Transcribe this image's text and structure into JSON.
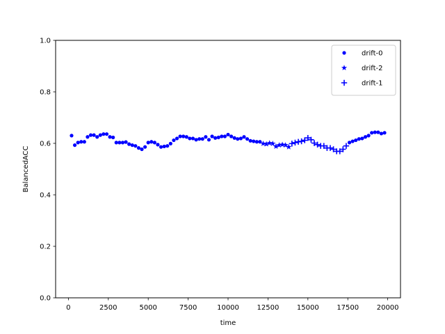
{
  "chart_data": {
    "type": "scatter",
    "title": "",
    "xlabel": "time",
    "ylabel": "BalancedACC",
    "xlim": [
      -800,
      20800
    ],
    "ylim": [
      0.0,
      1.0
    ],
    "xticks": [
      0,
      2500,
      5000,
      7500,
      10000,
      12500,
      15000,
      17500,
      20000
    ],
    "xtick_labels": [
      "0",
      "2500",
      "5000",
      "7500",
      "10000",
      "12500",
      "15000",
      "17500",
      "20000"
    ],
    "yticks": [
      0.0,
      0.2,
      0.4,
      0.6,
      0.8,
      1.0
    ],
    "ytick_labels": [
      "0.0",
      "0.2",
      "0.4",
      "0.6",
      "0.8",
      "1.0"
    ],
    "grid": false,
    "legend_position": "top-right",
    "color": "#0000ff",
    "series": [
      {
        "name": "drift-0",
        "marker": "circle",
        "x": [
          200,
          400,
          600,
          800,
          1000,
          1200,
          1400,
          1600,
          1800,
          2000,
          2200,
          2400,
          2600,
          2800,
          3000,
          3200,
          3400,
          3600,
          3800,
          4000,
          4200,
          4400,
          4600,
          4800,
          5000,
          5200,
          5400,
          5600,
          5800,
          6000,
          6200,
          6400,
          6600,
          6800,
          7000,
          7200,
          7400,
          7600,
          7800,
          8000,
          8200,
          8400,
          8600,
          8800,
          9000,
          9200,
          9400,
          9600,
          9800,
          10000,
          10200,
          10400,
          10600,
          10800,
          11000,
          11200,
          11400,
          11600,
          11800,
          12000,
          17600,
          17800,
          18000,
          18200,
          18400,
          18600,
          18800,
          19000,
          19200,
          19400,
          19600,
          19800
        ],
        "y": [
          0.63,
          0.593,
          0.603,
          0.606,
          0.606,
          0.625,
          0.632,
          0.632,
          0.625,
          0.632,
          0.636,
          0.636,
          0.625,
          0.623,
          0.603,
          0.603,
          0.603,
          0.605,
          0.597,
          0.593,
          0.59,
          0.582,
          0.577,
          0.586,
          0.603,
          0.606,
          0.603,
          0.595,
          0.586,
          0.588,
          0.59,
          0.599,
          0.612,
          0.619,
          0.627,
          0.627,
          0.625,
          0.619,
          0.619,
          0.614,
          0.617,
          0.617,
          0.625,
          0.614,
          0.627,
          0.621,
          0.623,
          0.627,
          0.627,
          0.634,
          0.627,
          0.621,
          0.617,
          0.619,
          0.625,
          0.617,
          0.61,
          0.608,
          0.606,
          0.606,
          0.603,
          0.608,
          0.612,
          0.617,
          0.619,
          0.625,
          0.63,
          0.641,
          0.643,
          0.643,
          0.638,
          0.641
        ]
      },
      {
        "name": "drift-2",
        "marker": "star",
        "x": [
          12200,
          12400,
          12600,
          12800,
          13000,
          13200,
          13400,
          13600,
          13800
        ],
        "y": [
          0.599,
          0.597,
          0.601,
          0.599,
          0.588,
          0.593,
          0.595,
          0.593,
          0.586
        ]
      },
      {
        "name": "drift-1",
        "marker": "plus",
        "x": [
          14000,
          14200,
          14400,
          14600,
          14800,
          15000,
          15200,
          15400,
          15600,
          15800,
          16000,
          16200,
          16400,
          16600,
          16800,
          17000,
          17200,
          17400
        ],
        "y": [
          0.599,
          0.603,
          0.606,
          0.608,
          0.612,
          0.621,
          0.614,
          0.601,
          0.595,
          0.59,
          0.59,
          0.582,
          0.582,
          0.577,
          0.569,
          0.569,
          0.577,
          0.59
        ]
      }
    ]
  }
}
